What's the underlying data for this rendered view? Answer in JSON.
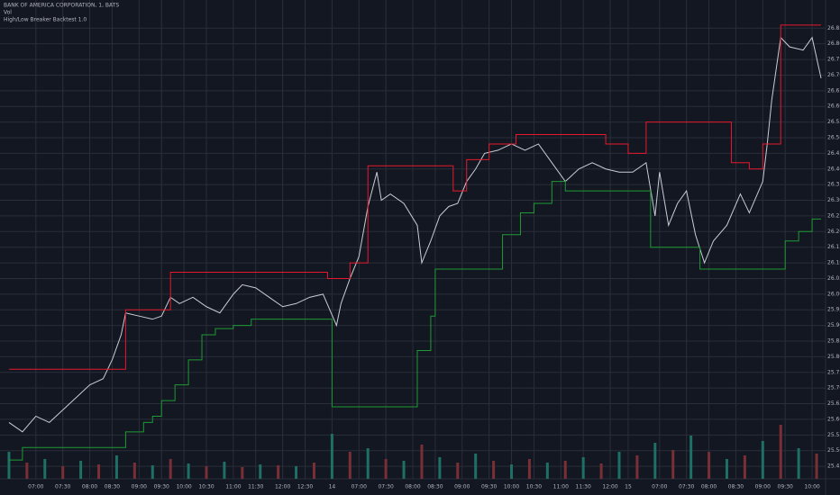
{
  "chart_data": {
    "type": "line",
    "title": "BANK OF AMERICA CORPORATION, 1, BATS",
    "subtitle": "Vol",
    "annotations": [
      "High/Low Breaker Backtest 1.0"
    ],
    "xlim": [
      -2,
      182
    ],
    "ylim": [
      25.41,
      26.94
    ],
    "grid": true,
    "xticks": [
      {
        "value": 6,
        "label": "07:00"
      },
      {
        "value": 12,
        "label": "07:30"
      },
      {
        "value": 18,
        "label": "08:00"
      },
      {
        "value": 23,
        "label": "08:30"
      },
      {
        "value": 29,
        "label": "09:00"
      },
      {
        "value": 34,
        "label": "09:30"
      },
      {
        "value": 39,
        "label": "10:00"
      },
      {
        "value": 44,
        "label": "10:30"
      },
      {
        "value": 50,
        "label": "11:00"
      },
      {
        "value": 55,
        "label": "11:30"
      },
      {
        "value": 61,
        "label": "12:00"
      },
      {
        "value": 66,
        "label": "12:30"
      },
      {
        "value": 72,
        "label": "14"
      },
      {
        "value": 78,
        "label": "07:00"
      },
      {
        "value": 84,
        "label": "07:30"
      },
      {
        "value": 90,
        "label": "08:00"
      },
      {
        "value": 95,
        "label": "08:30"
      },
      {
        "value": 101,
        "label": "09:00"
      },
      {
        "value": 107,
        "label": "09:30"
      },
      {
        "value": 112,
        "label": "10:00"
      },
      {
        "value": 117,
        "label": "10:30"
      },
      {
        "value": 123,
        "label": "11:00"
      },
      {
        "value": 128,
        "label": "11:30"
      },
      {
        "value": 134,
        "label": "12:00"
      },
      {
        "value": 138,
        "label": "15"
      },
      {
        "value": 145,
        "label": "07:00"
      },
      {
        "value": 151,
        "label": "07:30"
      },
      {
        "value": 156,
        "label": "08:00"
      },
      {
        "value": 162,
        "label": "08:30"
      },
      {
        "value": 168,
        "label": "09:00"
      },
      {
        "value": 173,
        "label": "09:30"
      },
      {
        "value": 179,
        "label": "10:00"
      }
    ],
    "yticks": [
      25.45,
      {
        "value": 25.5,
        "label": "25.50"
      },
      25.55,
      {
        "value": 25.6,
        "label": "25.60"
      },
      25.65,
      {
        "value": 25.7,
        "label": "25.70"
      },
      25.75,
      {
        "value": 25.8,
        "label": "25.80"
      },
      25.85,
      {
        "value": 25.9,
        "label": "25.90"
      },
      25.95,
      {
        "value": 26,
        "label": "26.00"
      },
      26.05,
      {
        "value": 26.1,
        "label": "26.10"
      },
      26.15,
      {
        "value": 26.2,
        "label": "26.20"
      },
      26.25,
      {
        "value": 26.3,
        "label": "26.30"
      },
      26.35,
      {
        "value": 26.4,
        "label": "26.40"
      },
      26.45,
      {
        "value": 26.5,
        "label": "26.50"
      },
      26.55,
      {
        "value": 26.6,
        "label": "26.60"
      },
      26.65,
      {
        "value": 26.7,
        "label": "26.70"
      },
      26.75,
      {
        "value": 26.8,
        "label": "26.80"
      },
      26.85
    ],
    "series": [
      {
        "color": "#c9ccd4",
        "x": [
          0,
          3,
          6,
          9,
          12,
          15,
          18,
          21,
          23,
          25,
          26,
          29,
          32,
          34,
          36,
          38,
          41,
          44,
          47,
          50,
          52,
          55,
          58,
          61,
          64,
          67,
          70,
          73,
          74,
          76,
          78,
          80,
          82,
          83,
          85,
          88,
          91,
          92,
          94,
          96,
          98,
          100,
          102,
          104,
          106,
          109,
          112,
          115,
          118,
          121,
          124,
          127,
          130,
          133,
          136,
          139,
          142,
          144,
          145,
          147,
          149,
          151,
          153,
          155,
          157,
          160,
          163,
          165,
          168,
          169,
          170,
          172,
          174,
          177,
          179,
          181
        ],
        "values": [
          25.59,
          25.56,
          25.61,
          25.59,
          25.63,
          25.67,
          25.71,
          25.73,
          25.79,
          25.87,
          25.94,
          25.93,
          25.92,
          25.93,
          25.99,
          25.97,
          25.99,
          25.96,
          25.94,
          26.0,
          26.03,
          26.02,
          25.99,
          25.96,
          25.97,
          25.99,
          26.0,
          25.9,
          25.97,
          26.05,
          26.12,
          26.28,
          26.39,
          26.3,
          26.32,
          26.29,
          26.22,
          26.1,
          26.17,
          26.25,
          26.28,
          26.29,
          26.36,
          26.4,
          26.45,
          26.46,
          26.48,
          26.46,
          26.48,
          26.42,
          26.36,
          26.4,
          26.42,
          26.4,
          26.39,
          26.39,
          26.42,
          26.25,
          26.39,
          26.22,
          26.29,
          26.33,
          26.19,
          26.1,
          26.17,
          26.22,
          26.32,
          26.26,
          26.36,
          26.48,
          26.62,
          26.82,
          26.79,
          26.78,
          26.82,
          26.69
        ]
      },
      {
        "color": "#e8182c",
        "drawstyle": "steps-post",
        "x": [
          0,
          26,
          36,
          71,
          76,
          80,
          99,
          102,
          107,
          113,
          133,
          138,
          142,
          161,
          165,
          168,
          172,
          181
        ],
        "values": [
          25.76,
          25.95,
          26.07,
          26.05,
          26.1,
          26.41,
          26.33,
          26.43,
          26.48,
          26.51,
          26.48,
          26.45,
          26.55,
          26.42,
          26.4,
          26.48,
          26.86,
          26.86
        ]
      },
      {
        "color": "#1f9a34",
        "drawstyle": "steps-post",
        "x": [
          0,
          3,
          26,
          30,
          32,
          34,
          37,
          40,
          43,
          46,
          50,
          54,
          72,
          91,
          94,
          95,
          110,
          114,
          117,
          121,
          124,
          143,
          154,
          173,
          176,
          179,
          181
        ],
        "values": [
          25.47,
          25.51,
          25.56,
          25.59,
          25.61,
          25.66,
          25.71,
          25.79,
          25.87,
          25.89,
          25.9,
          25.92,
          25.64,
          25.82,
          25.93,
          26.08,
          26.19,
          26.26,
          26.29,
          26.36,
          26.33,
          26.15,
          26.08,
          26.17,
          26.2,
          26.24,
          26.24
        ]
      }
    ],
    "volume": {
      "colors": [
        "#1e6f65",
        "#7a2e36"
      ],
      "x": [
        0,
        4,
        8,
        12,
        16,
        20,
        24,
        28,
        32,
        36,
        40,
        44,
        48,
        52,
        56,
        60,
        64,
        68,
        72,
        76,
        80,
        84,
        88,
        92,
        96,
        100,
        104,
        108,
        112,
        116,
        120,
        124,
        128,
        132,
        136,
        140,
        144,
        148,
        152,
        156,
        160,
        164,
        168,
        172,
        176,
        180
      ],
      "values": [
        30,
        18,
        22,
        14,
        20,
        16,
        26,
        18,
        15,
        22,
        17,
        14,
        19,
        13,
        16,
        15,
        14,
        18,
        50,
        30,
        34,
        22,
        20,
        38,
        24,
        18,
        28,
        20,
        16,
        22,
        18,
        20,
        24,
        17,
        30,
        26,
        40,
        32,
        48,
        30,
        22,
        26,
        42,
        60,
        34,
        28
      ]
    }
  }
}
